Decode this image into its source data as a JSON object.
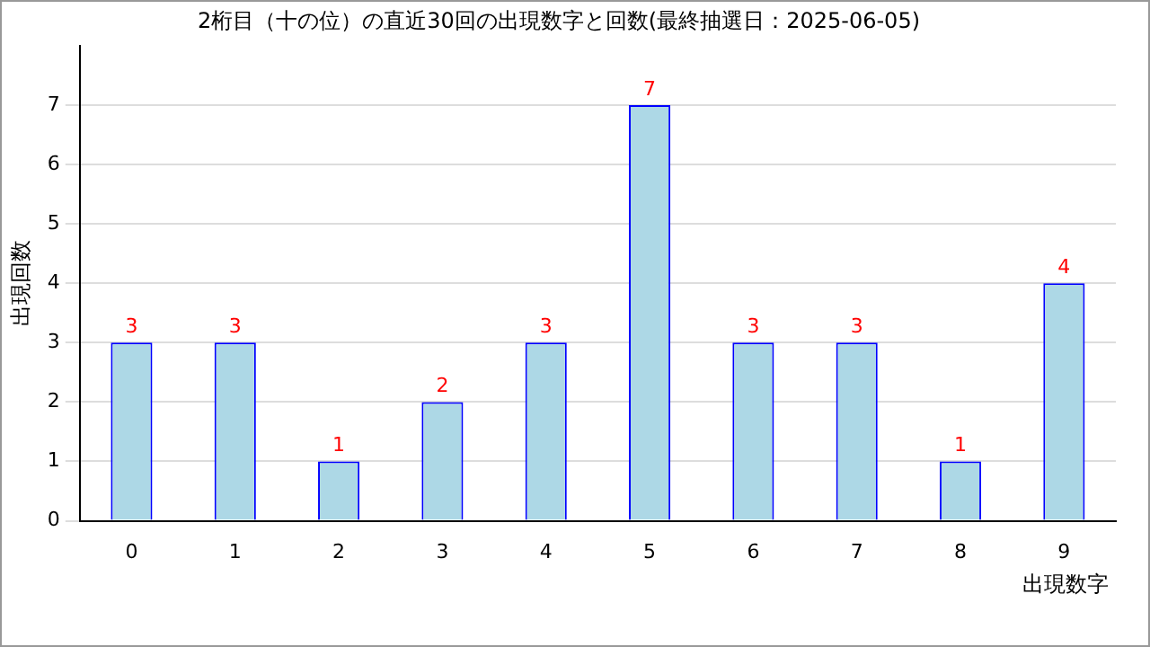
{
  "chart_data": {
    "type": "bar",
    "title": "2桁目（十の位）の直近30回の出現数字と回数(最終抽選日：2025-06-05)",
    "xlabel": "出現数字",
    "ylabel": "出現回数",
    "categories": [
      "0",
      "1",
      "2",
      "3",
      "4",
      "5",
      "6",
      "7",
      "8",
      "9"
    ],
    "values": [
      3,
      3,
      1,
      2,
      3,
      7,
      3,
      3,
      1,
      4
    ],
    "color": "#add8e6",
    "ylim": [
      0,
      8
    ],
    "yticks": [
      0,
      1,
      2,
      3,
      4,
      5,
      6,
      7
    ],
    "grid": "y",
    "data_labels": true,
    "legend": false
  }
}
